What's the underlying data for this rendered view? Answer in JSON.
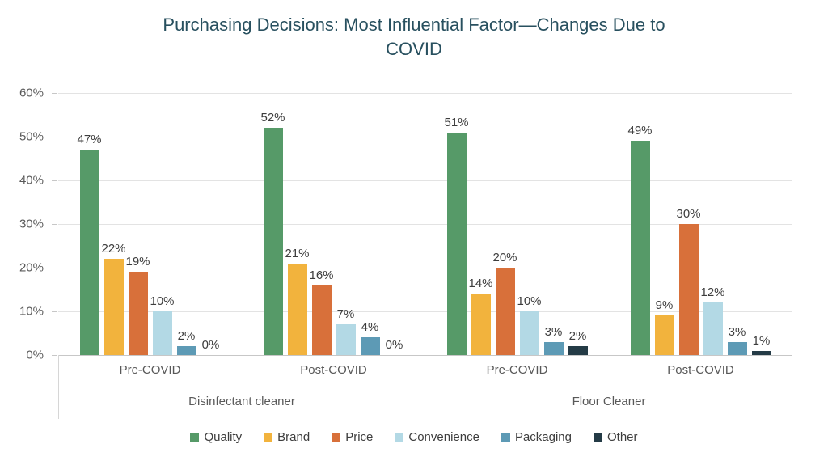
{
  "title_lines": [
    "Purchasing Decisions: Most Influential Factor—Changes Due to",
    "COVID"
  ],
  "chart_data": {
    "type": "bar",
    "title": "Purchasing Decisions: Most Influential Factor—Changes Due to COVID",
    "y_axis": {
      "min": 0,
      "max": 60,
      "step": 10,
      "unit": "%",
      "tick_labels": [
        "0%",
        "10%",
        "20%",
        "30%",
        "40%",
        "50%",
        "60%"
      ]
    },
    "grid": true,
    "legend_position": "bottom",
    "data_label_unit": "%",
    "categories": [
      "Pre-COVID",
      "Post-COVID",
      "Pre-COVID",
      "Post-COVID"
    ],
    "category_groups": [
      {
        "label": "Disinfectant cleaner",
        "span": 2
      },
      {
        "label": "Floor Cleaner",
        "span": 2
      }
    ],
    "series": [
      {
        "name": "Quality",
        "color": "#569a68",
        "values": [
          47,
          52,
          51,
          49
        ]
      },
      {
        "name": "Brand",
        "color": "#f2b33d",
        "values": [
          22,
          21,
          14,
          9
        ]
      },
      {
        "name": "Price",
        "color": "#d8703a",
        "values": [
          19,
          16,
          20,
          30
        ]
      },
      {
        "name": "Convenience",
        "color": "#b3d9e5",
        "values": [
          10,
          7,
          10,
          12
        ]
      },
      {
        "name": "Packaging",
        "color": "#5d9ab5",
        "values": [
          2,
          4,
          3,
          3
        ]
      },
      {
        "name": "Other",
        "color": "#243b46",
        "values": [
          0,
          0,
          2,
          1
        ]
      }
    ]
  },
  "style_colors": {
    "title_text": "#28505f",
    "axis_text": "#595959",
    "data_label_text": "#3d3d3d",
    "gridline": "#e3e3e3"
  }
}
